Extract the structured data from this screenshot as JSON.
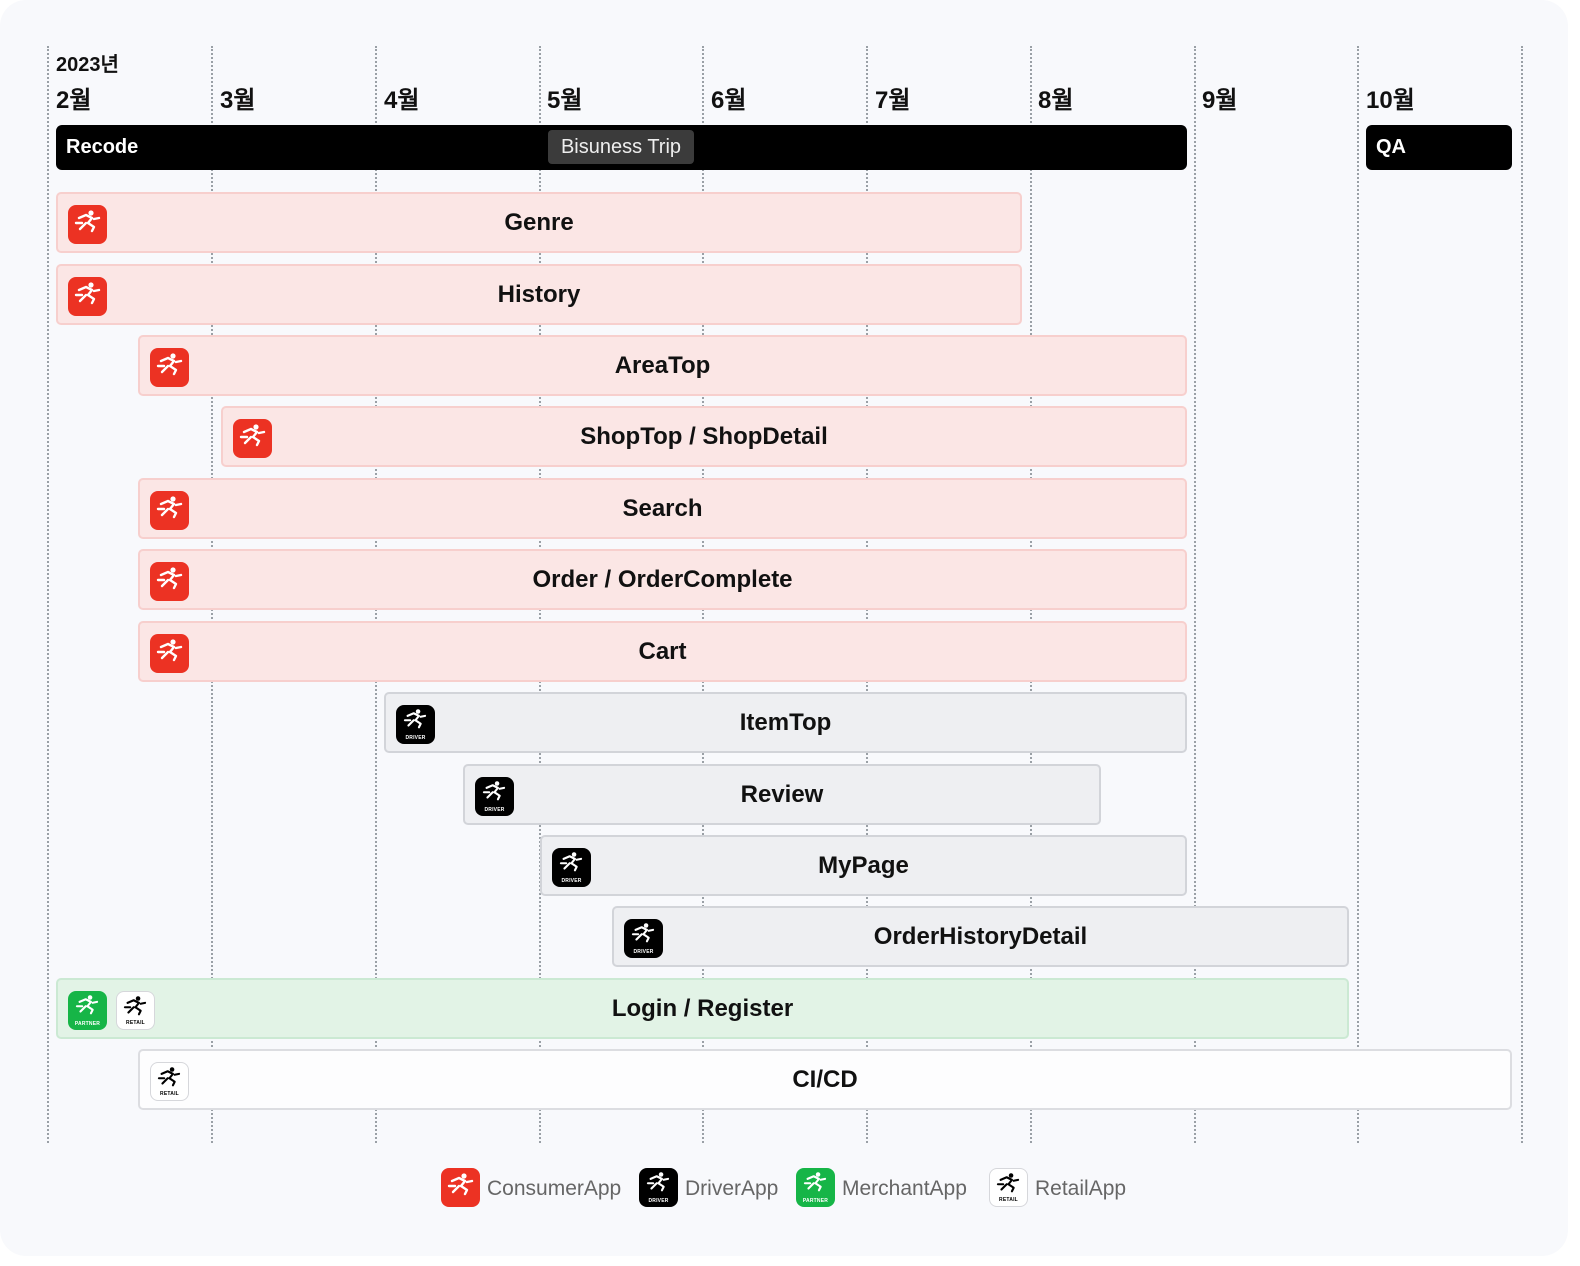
{
  "timeline": {
    "year": "2023년",
    "months": [
      "2월",
      "3월",
      "4월",
      "5월",
      "6월",
      "7월",
      "8월",
      "9월",
      "10월"
    ]
  },
  "phases": {
    "recode": "Recode",
    "trip": "Bisuness Trip",
    "qa": "QA"
  },
  "tasks": [
    {
      "label": "Genre",
      "app": "consumer"
    },
    {
      "label": "History",
      "app": "consumer"
    },
    {
      "label": "AreaTop",
      "app": "consumer"
    },
    {
      "label": "ShopTop / ShopDetail",
      "app": "consumer"
    },
    {
      "label": "Search",
      "app": "consumer"
    },
    {
      "label": "Order / OrderComplete",
      "app": "consumer"
    },
    {
      "label": "Cart",
      "app": "consumer"
    },
    {
      "label": "ItemTop",
      "app": "driver"
    },
    {
      "label": "Review",
      "app": "driver"
    },
    {
      "label": "MyPage",
      "app": "driver"
    },
    {
      "label": "OrderHistoryDetail",
      "app": "driver"
    },
    {
      "label": "Login / Register",
      "app": "merchant"
    },
    {
      "label": "CI/CD",
      "app": "retail"
    }
  ],
  "icon_tags": {
    "driver": "DRIVER",
    "merchant": "PARTNER",
    "retail": "RETAIL"
  },
  "legend": [
    {
      "app": "consumer",
      "label": "ConsumerApp"
    },
    {
      "app": "driver",
      "label": "DriverApp"
    },
    {
      "app": "merchant",
      "label": "MerchantApp"
    },
    {
      "app": "retail",
      "label": "RetailApp"
    }
  ],
  "colors": {
    "consumer": "#ec3223",
    "driver": "#000000",
    "merchant": "#16b547",
    "retail": "#ffffff"
  }
}
